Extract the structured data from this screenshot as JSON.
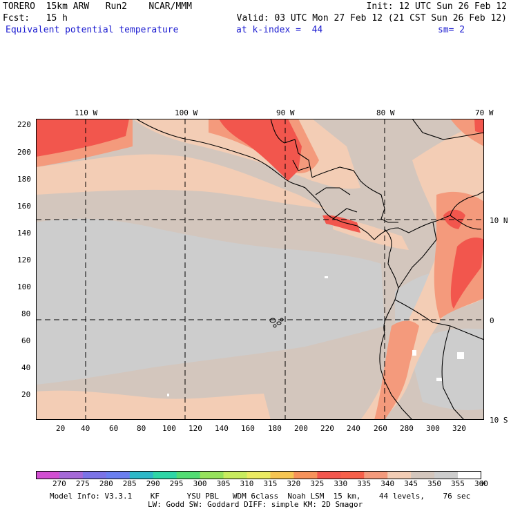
{
  "header": {
    "line1_left": "TORERO  15km ARW   Run2    NCAR/MMM",
    "line1_right": "Init: 12 UTC Sun 26 Feb 12",
    "line2_left": "Fcst:   15 h",
    "line2_right": "Valid: 03 UTC Mon 27 Feb 12 (21 CST Sun 26 Feb 12)",
    "line3_field": "Equivalent potential temperature",
    "line3_level": "at k-index =  44",
    "line3_sm": "sm= 2"
  },
  "map": {
    "lon_labels": [
      "110 W",
      "100 W",
      "90 W",
      "80 W",
      "70 W"
    ],
    "lat_labels": [
      "10 N",
      "0",
      "10 S"
    ],
    "y_grid_labels": [
      "220",
      "200",
      "180",
      "160",
      "140",
      "120",
      "100",
      "80",
      "60",
      "40",
      "20"
    ],
    "x_grid_labels": [
      "20",
      "40",
      "60",
      "80",
      "100",
      "120",
      "140",
      "160",
      "180",
      "200",
      "220",
      "240",
      "260",
      "280",
      "300",
      "320"
    ],
    "island_symbol": "~"
  },
  "colorbar": {
    "labels": [
      "270",
      "275",
      "280",
      "285",
      "290",
      "295",
      "300",
      "305",
      "310",
      "315",
      "320",
      "325",
      "330",
      "335",
      "340",
      "345",
      "350",
      "355",
      "360"
    ],
    "unit": "K",
    "colors": [
      "#d24fd2",
      "#a569d8",
      "#7b73e6",
      "#6a7ff0",
      "#2db8c8",
      "#2ed6a6",
      "#52dc73",
      "#96e25c",
      "#c8ec5e",
      "#ecea62",
      "#f6c552",
      "#f6925a",
      "#f2564d",
      "#f7604a",
      "#f49a7c",
      "#f3cdb5",
      "#d3c6bd",
      "#cdcdcd",
      "#ffffff"
    ]
  },
  "footer": {
    "line1": "Model Info: V3.3.1    KF      YSU PBL   WDM 6class  Noah LSM  15 km,    44 levels,    76 sec",
    "line2": "LW: Godd SW: Goddard DIFF: simple KM: 2D Smagor"
  }
}
